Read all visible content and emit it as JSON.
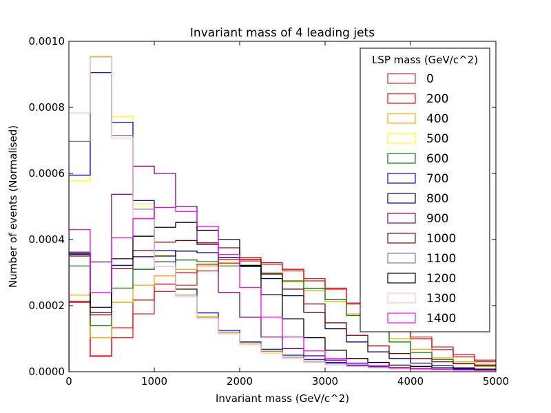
{
  "chart_data": {
    "type": "histogram-step",
    "title": "Invariant mass of 4 leading jets",
    "xlabel": "Invariant mass (GeV/c^2)",
    "ylabel": "Number of events (Normalised)",
    "xlim": [
      0,
      5000
    ],
    "ylim": [
      0,
      0.001
    ],
    "xticks": [
      "0",
      "1000",
      "2000",
      "3000",
      "4000",
      "5000"
    ],
    "xtick_values": [
      0,
      1000,
      2000,
      3000,
      4000,
      5000
    ],
    "yticks": [
      "0.0000",
      "0.0002",
      "0.0004",
      "0.0006",
      "0.0008",
      "0.0010"
    ],
    "ytick_values": [
      0,
      0.0002,
      0.0004,
      0.0006,
      0.0008,
      0.001
    ],
    "bin_edges": [
      0,
      250,
      500,
      750,
      1000,
      1250,
      1500,
      1750,
      2000,
      2250,
      2500,
      2750,
      3000,
      3250,
      3500,
      3750,
      4000,
      4250,
      4500,
      4750,
      5000
    ],
    "grid": false,
    "legend_title": "LSP mass (GeV/c^2)",
    "legend_position": "top-right",
    "series": [
      {
        "name": "0",
        "color": "#d62728",
        "values": [
          0.00021,
          4.8e-05,
          0.000103,
          0.000175,
          0.000243,
          0.000262,
          0.000305,
          0.000328,
          0.000335,
          0.000325,
          0.000305,
          0.000282,
          0.000253,
          0.000208,
          0.000175,
          0.000137,
          0.000105,
          7.5e-05,
          5.2e-05,
          3.5e-05
        ]
      },
      {
        "name": "200",
        "color": "#ff0000",
        "values": [
          0.000213,
          4.7e-05,
          0.000133,
          0.000217,
          0.000265,
          0.0003,
          0.000325,
          0.00034,
          0.000345,
          0.00033,
          0.00031,
          0.000275,
          0.00025,
          0.000205,
          0.000168,
          0.00013,
          0.0001,
          6.7e-05,
          4.5e-05,
          3e-05
        ]
      },
      {
        "name": "400",
        "color": "#ffa500",
        "values": [
          0.000232,
          0.000103,
          0.00021,
          0.000262,
          0.00029,
          0.00031,
          0.00032,
          0.00033,
          0.00032,
          0.000295,
          0.000272,
          0.000245,
          0.000212,
          0.000175,
          0.00014,
          0.0001,
          6.8e-05,
          4.2e-05,
          3e-05,
          2.2e-05
        ]
      },
      {
        "name": "500",
        "color": "#ffff00",
        "values": [
          0.000578,
          0.000955,
          0.000772,
          0.000508,
          0.000352,
          0.000248,
          0.000168,
          0.000118,
          8.5e-05,
          6e-05,
          4e-05,
          2.8e-05,
          2e-05,
          1.5e-05,
          1.2e-05,
          1e-05,
          8e-06,
          6e-06,
          5e-06,
          4e-06
        ]
      },
      {
        "name": "600",
        "color": "#008000",
        "values": [
          0.00032,
          0.00014,
          0.000253,
          0.00031,
          0.000333,
          0.000338,
          0.000333,
          0.00032,
          0.000318,
          0.000295,
          0.000275,
          0.000252,
          0.000218,
          0.00017,
          0.000125,
          9e-05,
          5.8e-05,
          3.7e-05,
          2.5e-05,
          1.7e-05
        ]
      },
      {
        "name": "700",
        "color": "#0000ff",
        "values": [
          0.000595,
          0.000905,
          0.000755,
          0.000518,
          0.000367,
          0.00025,
          0.000178,
          0.000125,
          9e-05,
          6.8e-05,
          5e-05,
          3.7e-05,
          2.8e-05,
          2e-05,
          1.6e-05,
          1.2e-05,
          1e-05,
          8e-06,
          6e-06,
          4e-06
        ]
      },
      {
        "name": "800",
        "color": "#000080",
        "values": [
          0.000355,
          0.00018,
          0.000322,
          0.000348,
          0.00035,
          0.000365,
          0.00036,
          0.000345,
          0.00032,
          0.000282,
          0.00023,
          0.00018,
          0.00013,
          9e-05,
          6e-05,
          4e-05,
          2.6e-05,
          1.8e-05,
          1.2e-05,
          8e-06
        ]
      },
      {
        "name": "900",
        "color": "#800080",
        "values": [
          0.000362,
          0.000332,
          0.000537,
          0.000622,
          0.0006,
          0.0005,
          0.000385,
          0.00024,
          0.000165,
          0.000105,
          7e-05,
          4.8e-05,
          3.5e-05,
          2.5e-05,
          1.8e-05,
          1.3e-05,
          1e-05,
          7e-06,
          5e-06,
          4e-06
        ]
      },
      {
        "name": "1000",
        "color": "#8b0000",
        "values": [
          0.00035,
          0.000172,
          0.000312,
          0.000367,
          0.000392,
          0.000397,
          0.00039,
          0.000375,
          0.00034,
          0.000298,
          0.00025,
          0.000205,
          0.000148,
          0.00011,
          7.8e-05,
          5.5e-05,
          4e-05,
          3e-05,
          2.4e-05,
          1.9e-05
        ]
      },
      {
        "name": "1100",
        "color": "#808080",
        "values": [
          0.000697,
          0.000953,
          0.000715,
          0.000492,
          0.000332,
          0.000232,
          0.000165,
          0.00012,
          8.8e-05,
          6.2e-05,
          4.4e-05,
          3.2e-05,
          2.4e-05,
          1.8e-05,
          1.4e-05,
          1e-05,
          8e-06,
          6e-06,
          5e-06,
          4e-06
        ]
      },
      {
        "name": "1200",
        "color": "#000000",
        "values": [
          0.000358,
          0.000195,
          0.000342,
          0.00041,
          0.000437,
          0.000452,
          0.000428,
          0.0004,
          0.000322,
          0.000233,
          0.00016,
          0.000103,
          6.5e-05,
          4e-05,
          2.8e-05,
          2e-05,
          1.6e-05,
          1.2e-05,
          9e-06,
          7e-06
        ]
      },
      {
        "name": "1300",
        "color": "#ffc0cb",
        "values": [
          0.000783,
          0.000952,
          0.000707,
          0.000465,
          0.000318,
          0.000227,
          0.00016,
          0.000115,
          8.2e-05,
          5.6e-05,
          4e-05,
          2.8e-05,
          2e-05,
          1.5e-05,
          1.1e-05,
          8e-06,
          6e-06,
          5e-06,
          4e-06,
          3e-06
        ]
      },
      {
        "name": "1400",
        "color": "#ff00ff",
        "values": [
          0.00043,
          0.00024,
          0.000405,
          0.000463,
          0.000497,
          0.000485,
          0.00044,
          0.000355,
          0.000255,
          0.000165,
          0.000105,
          6.3e-05,
          4e-05,
          2.6e-05,
          1.8e-05,
          1.2e-05,
          9e-06,
          7e-06,
          5e-06,
          4e-06
        ]
      }
    ]
  }
}
